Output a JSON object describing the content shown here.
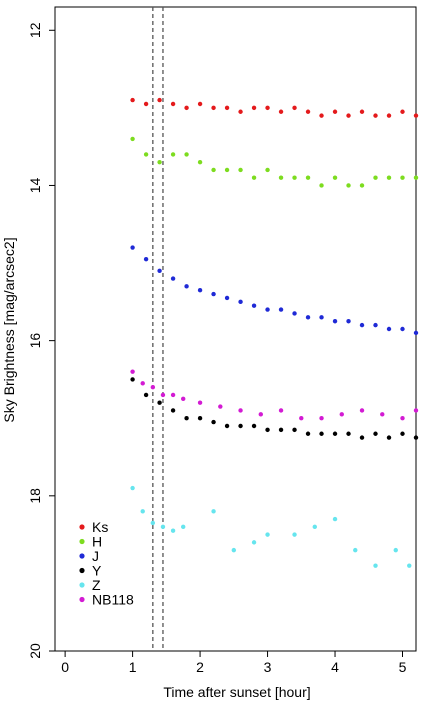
{
  "chart_data": {
    "type": "scatter",
    "title": "",
    "xlabel": "Time after sunset [hour]",
    "ylabel": "Sky Brightness [mag/arcsec2]",
    "xlim": [
      -0.15,
      5.2
    ],
    "ylim": [
      20.0,
      11.7
    ],
    "y_inverted": true,
    "grid": false,
    "xticks": [
      0,
      1,
      2,
      3,
      4,
      5
    ],
    "yticks": [
      12,
      14,
      16,
      18,
      20
    ],
    "legend_position": "bottom-left",
    "vertical_lines": [
      1.3,
      1.45
    ],
    "series": [
      {
        "name": "Ks",
        "color": "#e41a1c",
        "x": [
          1.0,
          1.2,
          1.4,
          1.6,
          1.8,
          2.0,
          2.2,
          2.4,
          2.6,
          2.8,
          3.0,
          3.2,
          3.4,
          3.6,
          3.8,
          4.0,
          4.2,
          4.4,
          4.6,
          4.8,
          5.0,
          5.2
        ],
        "y": [
          12.9,
          12.95,
          12.9,
          12.95,
          13.0,
          12.95,
          13.0,
          13.0,
          13.05,
          13.0,
          13.0,
          13.05,
          13.0,
          13.05,
          13.1,
          13.05,
          13.1,
          13.05,
          13.1,
          13.1,
          13.05,
          13.1
        ]
      },
      {
        "name": "H",
        "color": "#7ddc1f",
        "x": [
          1.0,
          1.2,
          1.4,
          1.6,
          1.8,
          2.0,
          2.2,
          2.4,
          2.6,
          2.8,
          3.0,
          3.2,
          3.4,
          3.6,
          3.8,
          4.0,
          4.2,
          4.4,
          4.6,
          4.8,
          5.0,
          5.2
        ],
        "y": [
          13.4,
          13.6,
          13.7,
          13.6,
          13.6,
          13.7,
          13.8,
          13.8,
          13.8,
          13.9,
          13.8,
          13.9,
          13.9,
          13.9,
          14.0,
          13.9,
          14.0,
          14.0,
          13.9,
          13.9,
          13.9,
          13.9
        ]
      },
      {
        "name": "J",
        "color": "#1f2ad6",
        "x": [
          1.0,
          1.2,
          1.4,
          1.6,
          1.8,
          2.0,
          2.2,
          2.4,
          2.6,
          2.8,
          3.0,
          3.2,
          3.4,
          3.6,
          3.8,
          4.0,
          4.2,
          4.4,
          4.6,
          4.8,
          5.0,
          5.2
        ],
        "y": [
          14.8,
          14.95,
          15.1,
          15.2,
          15.3,
          15.35,
          15.4,
          15.45,
          15.5,
          15.55,
          15.6,
          15.6,
          15.65,
          15.7,
          15.7,
          15.75,
          15.75,
          15.8,
          15.8,
          15.85,
          15.85,
          15.9
        ]
      },
      {
        "name": "Y",
        "color": "#000000",
        "x": [
          1.0,
          1.2,
          1.4,
          1.6,
          1.8,
          2.0,
          2.2,
          2.4,
          2.6,
          2.8,
          3.0,
          3.2,
          3.4,
          3.6,
          3.8,
          4.0,
          4.2,
          4.4,
          4.6,
          4.8,
          5.0,
          5.2
        ],
        "y": [
          16.5,
          16.7,
          16.8,
          16.9,
          17.0,
          17.0,
          17.05,
          17.1,
          17.1,
          17.1,
          17.15,
          17.15,
          17.15,
          17.2,
          17.2,
          17.2,
          17.2,
          17.25,
          17.2,
          17.25,
          17.2,
          17.25
        ]
      },
      {
        "name": "Z",
        "color": "#66e5ee",
        "x": [
          1.0,
          1.15,
          1.3,
          1.45,
          1.6,
          1.75,
          2.2,
          2.5,
          2.8,
          3.0,
          3.4,
          3.7,
          4.0,
          4.3,
          4.6,
          4.9,
          5.1
        ],
        "y": [
          17.9,
          18.2,
          18.35,
          18.4,
          18.45,
          18.4,
          18.2,
          18.7,
          18.6,
          18.5,
          18.5,
          18.4,
          18.3,
          18.7,
          18.9,
          18.7,
          18.9
        ]
      },
      {
        "name": "NB118",
        "color": "#d31bd3",
        "x": [
          1.0,
          1.15,
          1.3,
          1.45,
          1.6,
          1.75,
          2.0,
          2.3,
          2.6,
          2.9,
          3.2,
          3.5,
          3.8,
          4.1,
          4.4,
          4.7,
          5.0,
          5.2
        ],
        "y": [
          16.4,
          16.55,
          16.6,
          16.7,
          16.7,
          16.75,
          16.8,
          16.85,
          16.9,
          16.95,
          16.9,
          17.0,
          17.0,
          16.95,
          16.9,
          16.95,
          17.0,
          16.9
        ]
      }
    ]
  }
}
